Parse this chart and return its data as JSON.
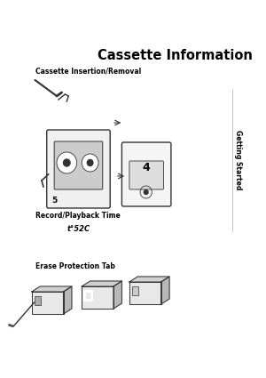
{
  "bg_color": "#ffffff",
  "title": "Cassette Information",
  "title_color": "#000000",
  "title_fontsize": 10.5,
  "title_weight": "bold",
  "section1_label": "Cassette Insertion/Removal",
  "section1_fontsize": 5.5,
  "section1_color": "#000000",
  "section1_weight": "bold",
  "section2_label": "Record/Playback Time",
  "section2_fontsize": 5.5,
  "section2_color": "#000000",
  "section2_weight": "bold",
  "time_label": "t°52C",
  "time_fontsize": 6.0,
  "time_color": "#000000",
  "section3_label": "Erase Protection Tab",
  "section3_fontsize": 5.5,
  "section3_color": "#000000",
  "section3_weight": "bold",
  "sidebar_text": "Getting Started",
  "sidebar_fontsize": 5.5,
  "sidebar_color": "#000000",
  "draw_color": "#555555",
  "line_color": "#333333"
}
